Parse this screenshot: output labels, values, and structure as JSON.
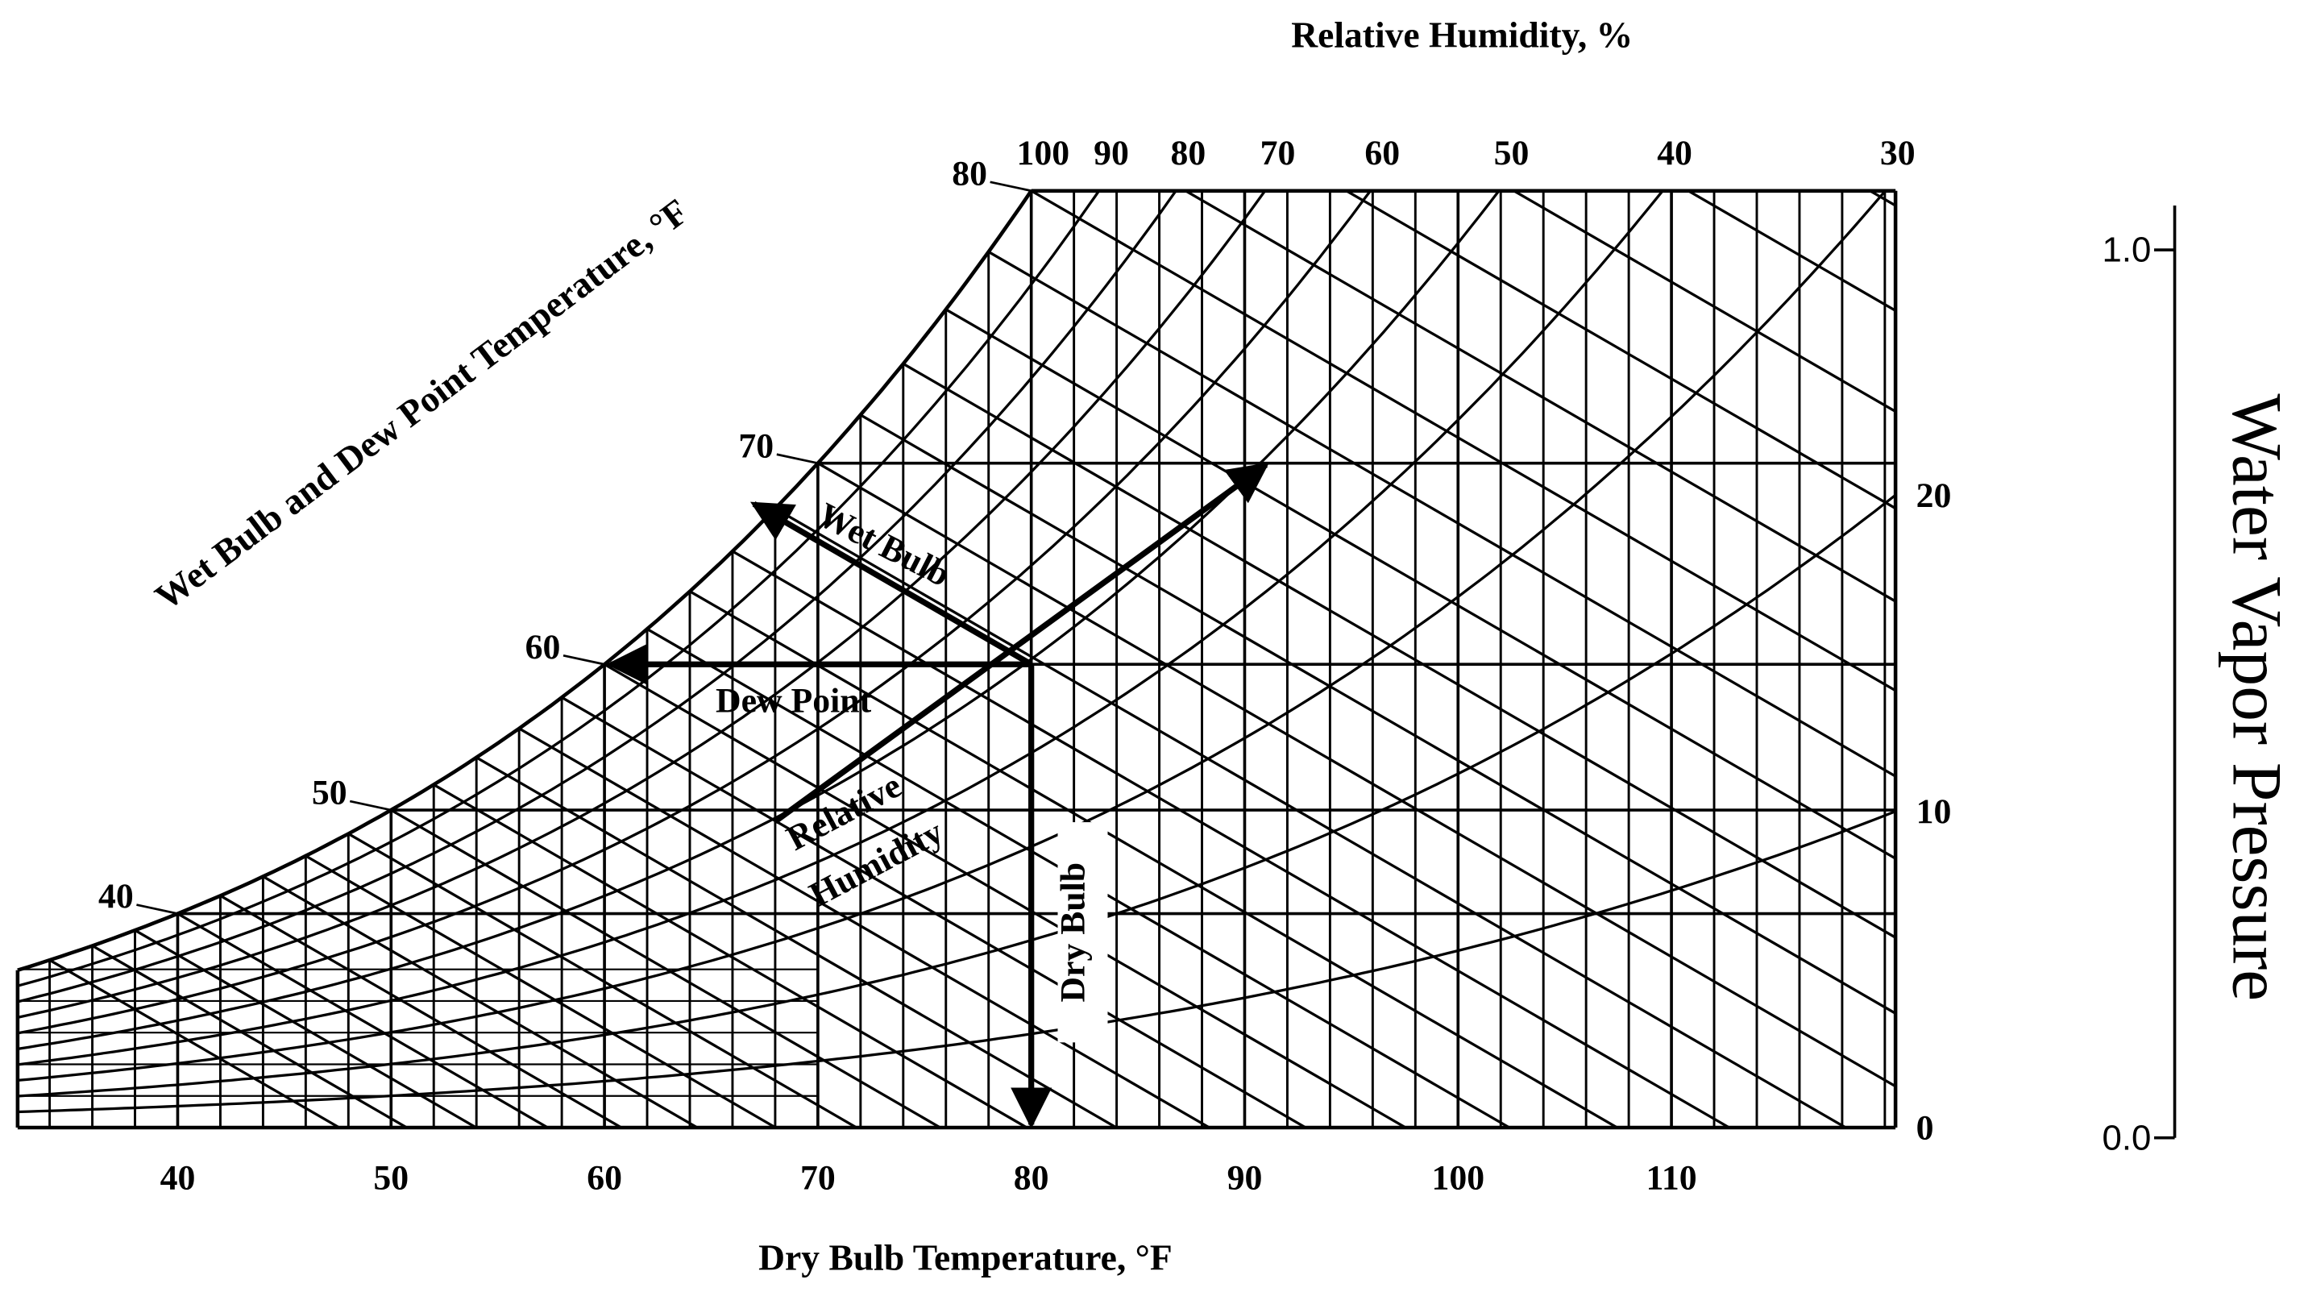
{
  "chart_data": {
    "type": "psychrometric",
    "color": "#000000",
    "x_label": "Dry Bulb Temperature, °F",
    "xlim": [
      32.5,
      120.5
    ],
    "xticks": [
      40,
      50,
      60,
      70,
      80,
      90,
      100,
      110
    ],
    "wet_bulb_dew_point_label": "Wet Bulb and Dew Point Temperature, °F",
    "saturation_ticks": [
      40,
      50,
      60,
      70,
      80
    ],
    "relative_humidity_label": "Relative Humidity, %",
    "relative_humidity_ticks": [
      100,
      90,
      80,
      70,
      60,
      50,
      40,
      30,
      20,
      10,
      0
    ],
    "annotations": [
      "Wet Bulb",
      "Dew Point",
      "Relative",
      "Humidity",
      "Dry Bulb"
    ],
    "vapor_pressure_axis": {
      "label": "Water Vapor Pressure",
      "ylim": [
        0,
        1.05
      ],
      "yticks": [
        {
          "value": 0,
          "label": "0.0"
        },
        {
          "value": 1,
          "label": "1.0"
        }
      ]
    }
  }
}
